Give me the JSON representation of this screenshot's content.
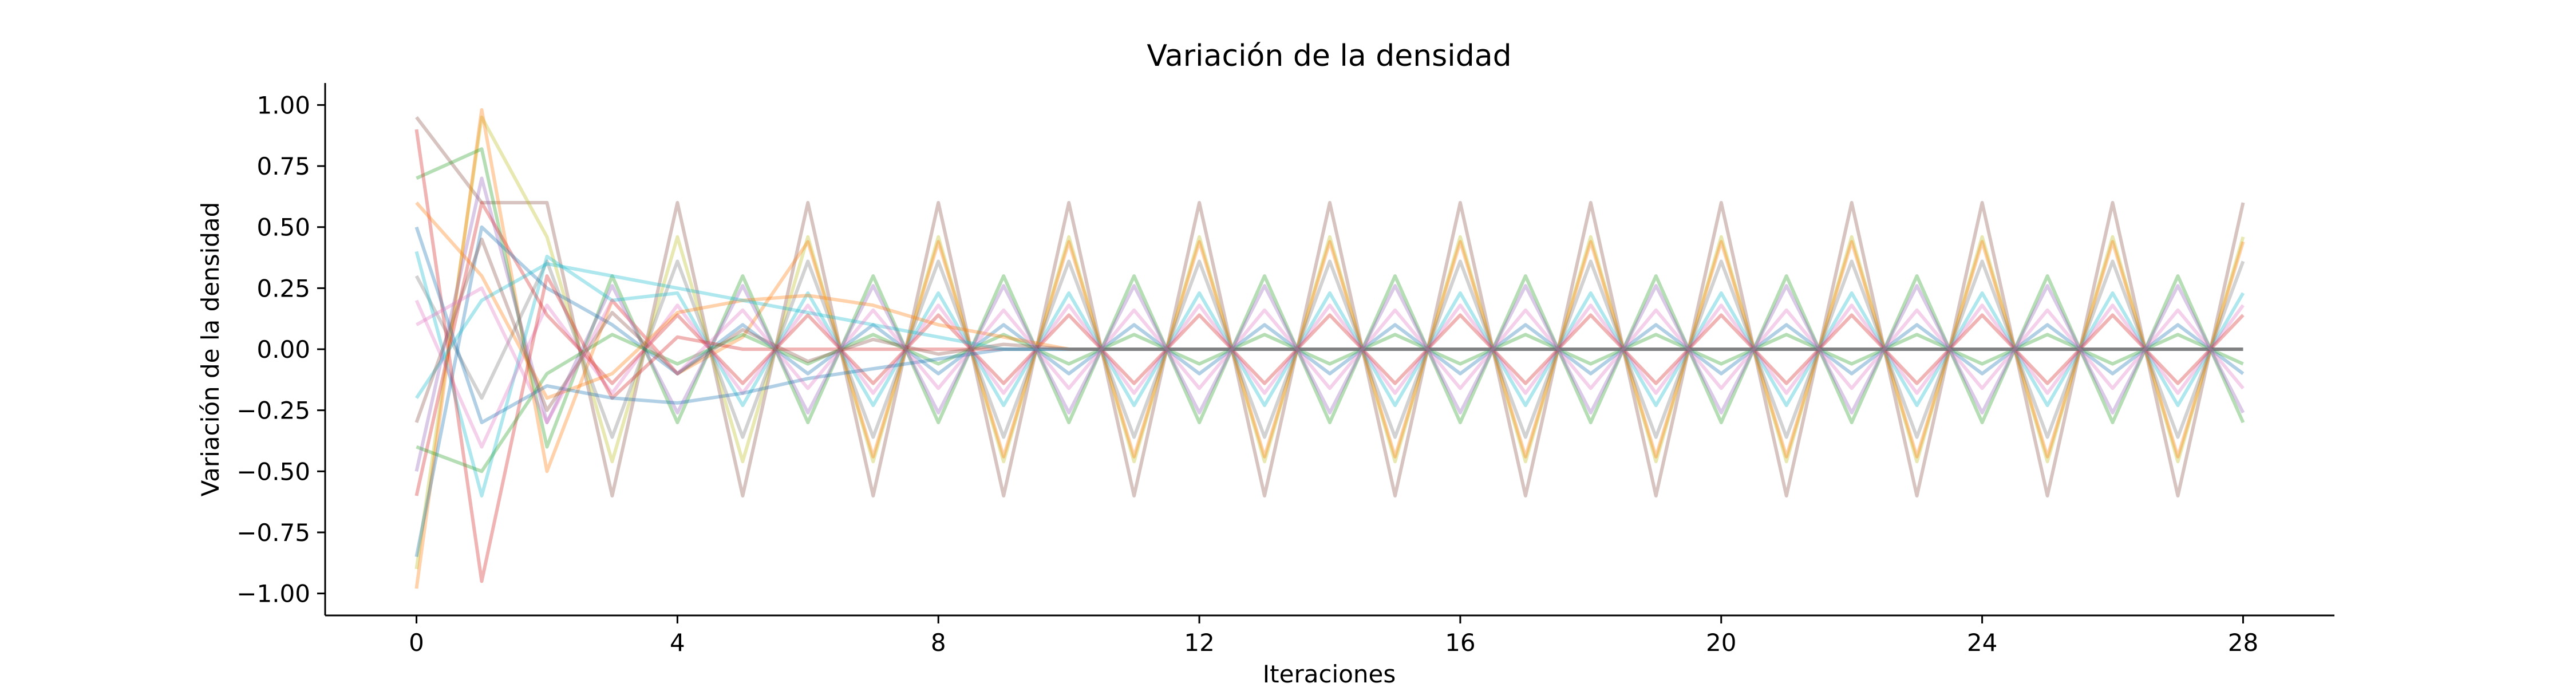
{
  "chart_data": {
    "type": "line",
    "title": "Variación de la densidad",
    "xlabel": "Iteraciones",
    "ylabel": "Variación de la densidad",
    "xlim": [
      -1.4,
      29.4
    ],
    "ylim": [
      -1.09,
      1.09
    ],
    "xticks": [
      0,
      4,
      8,
      12,
      16,
      20,
      24,
      28
    ],
    "xtick_labels": [
      "0",
      "4",
      "8",
      "12",
      "16",
      "20",
      "24",
      "28"
    ],
    "yticks": [
      1.0,
      0.75,
      0.5,
      0.25,
      0.0,
      -0.25,
      -0.5,
      -0.75,
      -1.0
    ],
    "ytick_labels": [
      "1.00",
      "0.75",
      "0.50",
      "0.25",
      "0.00",
      "−0.25",
      "−0.50",
      "−0.75",
      "−1.00"
    ],
    "grid": false,
    "legend": "none",
    "line_opacity": 0.35,
    "note_series": "Representative subset of the many overlapping translucent series; values estimated from the plot.",
    "series": [
      {
        "color": "#8c564b",
        "values": [
          0.95,
          0.6,
          0,
          0,
          0,
          0,
          0,
          0,
          0,
          0,
          0,
          0,
          0,
          0,
          0,
          0,
          0,
          0,
          0,
          0,
          0,
          0,
          0,
          0,
          0,
          0,
          0,
          0,
          0
        ],
        "osc_amp": 0.6,
        "osc_start": 2
      },
      {
        "color": "#bcbd22",
        "values": [
          -0.9,
          0.95,
          0,
          0,
          0,
          0,
          0,
          0,
          0,
          0,
          0,
          0,
          0,
          0,
          0,
          0,
          0,
          0,
          0,
          0,
          0,
          0,
          0,
          0,
          0,
          0,
          0,
          0,
          0
        ],
        "osc_amp": 0.46,
        "osc_start": 2
      },
      {
        "color": "#ff7f0e",
        "values": [
          -0.98,
          0.98,
          -0.5,
          0.2,
          -0.1,
          0.05,
          0,
          0,
          0,
          0,
          0,
          0,
          0,
          0,
          0,
          0,
          0,
          0,
          0,
          0,
          0,
          0,
          0,
          0,
          0,
          0,
          0,
          0,
          0
        ],
        "osc_amp": 0.44,
        "osc_start": 6
      },
      {
        "color": "#7f7f7f",
        "values": [
          0.3,
          -0.2,
          0,
          0,
          0,
          0,
          0,
          0,
          0,
          0,
          0,
          0,
          0,
          0,
          0,
          0,
          0,
          0,
          0,
          0,
          0,
          0,
          0,
          0,
          0,
          0,
          0,
          0,
          0
        ],
        "osc_amp": 0.36,
        "osc_start": 2
      },
      {
        "color": "#2ca02c",
        "values": [
          0.7,
          0.82,
          -0.4,
          0.1,
          0,
          0,
          0,
          0,
          0,
          0,
          0,
          0,
          0,
          0,
          0,
          0,
          0,
          0,
          0,
          0,
          0,
          0,
          0,
          0,
          0,
          0,
          0,
          0,
          0
        ],
        "osc_amp": 0.3,
        "osc_start": 3
      },
      {
        "color": "#9467bd",
        "values": [
          -0.5,
          0.7,
          -0.3,
          0.1,
          0,
          0,
          0,
          0,
          0,
          0,
          0,
          0,
          0,
          0,
          0,
          0,
          0,
          0,
          0,
          0,
          0,
          0,
          0,
          0,
          0,
          0,
          0,
          0,
          0
        ],
        "osc_amp": 0.26,
        "osc_start": 3
      },
      {
        "color": "#17becf",
        "values": [
          0.4,
          -0.6,
          0.38,
          0.2,
          0.1,
          0.05,
          0,
          0,
          0,
          0,
          0,
          0,
          0,
          0,
          0,
          0,
          0,
          0,
          0,
          0,
          0,
          0,
          0,
          0,
          0,
          0,
          0,
          0,
          0
        ],
        "osc_amp": 0.23,
        "osc_start": 4
      },
      {
        "color": "#e377c2",
        "values": [
          0.2,
          -0.4,
          0.1,
          0,
          0,
          0,
          0,
          0,
          0,
          0,
          0,
          0,
          0,
          0,
          0,
          0,
          0,
          0,
          0,
          0,
          0,
          0,
          0,
          0,
          0,
          0,
          0,
          0,
          0
        ],
        "osc_amp": 0.18,
        "osc_start": 2
      },
      {
        "color": "#d62728",
        "values": [
          -0.6,
          0.6,
          0.1,
          0,
          0,
          0,
          0,
          0,
          0,
          0,
          0,
          0,
          0,
          0,
          0,
          0,
          0,
          0,
          0,
          0,
          0,
          0,
          0,
          0,
          0,
          0,
          0,
          0,
          0
        ],
        "osc_amp": 0.14,
        "osc_start": 2
      },
      {
        "color": "#1f77b4",
        "values": [
          -0.85,
          0.5,
          0.25,
          0.15,
          0.1,
          0.05,
          0,
          0,
          0,
          0,
          0,
          0,
          0,
          0,
          0,
          0,
          0,
          0,
          0,
          0,
          0,
          0,
          0,
          0,
          0,
          0,
          0,
          0,
          0
        ],
        "osc_amp": 0.1,
        "osc_start": 3
      },
      {
        "color": "#d62728",
        "values": [
          0.9,
          -0.95,
          0.3,
          -0.2,
          0.05,
          0,
          0,
          0,
          0,
          0,
          0,
          0,
          0,
          0,
          0,
          0,
          0,
          0,
          0,
          0,
          0,
          0,
          0,
          0,
          0,
          0,
          0,
          0,
          0
        ],
        "osc_amp": 0.0,
        "osc_start": 28
      },
      {
        "color": "#2ca02c",
        "values": [
          -0.4,
          -0.5,
          -0.1,
          -0.05,
          0,
          0,
          0,
          0,
          0,
          0,
          0,
          0,
          0,
          0,
          0,
          0,
          0,
          0,
          0,
          0,
          0,
          0,
          0,
          0,
          0,
          0,
          0,
          0,
          0
        ],
        "osc_amp": 0.06,
        "osc_start": 3
      },
      {
        "color": "#ff7f0e",
        "values": [
          0.6,
          0.3,
          -0.2,
          -0.1,
          0.15,
          0.2,
          0.22,
          0.18,
          0.1,
          0.05,
          0,
          0,
          0,
          0,
          0,
          0,
          0,
          0,
          0,
          0,
          0,
          0,
          0,
          0,
          0,
          0,
          0,
          0,
          0
        ],
        "osc_amp": 0.0,
        "osc_start": 28
      },
      {
        "color": "#17becf",
        "values": [
          -0.2,
          0.2,
          0.35,
          0.3,
          0.25,
          0.2,
          0.15,
          0.1,
          0.05,
          0,
          0,
          0,
          0,
          0,
          0,
          0,
          0,
          0,
          0,
          0,
          0,
          0,
          0,
          0,
          0,
          0,
          0,
          0,
          0
        ],
        "osc_amp": 0.0,
        "osc_start": 28
      },
      {
        "color": "#1f77b4",
        "values": [
          0.5,
          -0.3,
          -0.15,
          -0.2,
          -0.22,
          -0.18,
          -0.12,
          -0.08,
          -0.04,
          0,
          0,
          0,
          0,
          0,
          0,
          0,
          0,
          0,
          0,
          0,
          0,
          0,
          0,
          0,
          0,
          0,
          0,
          0,
          0
        ],
        "osc_amp": 0.0,
        "osc_start": 28
      },
      {
        "color": "#8c564b",
        "values": [
          -0.3,
          0.45,
          -0.25,
          0.15,
          -0.1,
          0.08,
          -0.05,
          0.04,
          -0.02,
          0.02,
          0,
          0,
          0,
          0,
          0,
          0,
          0,
          0,
          0,
          0,
          0,
          0,
          0,
          0,
          0,
          0,
          0,
          0,
          0
        ],
        "osc_amp": 0.0,
        "osc_start": 28
      },
      {
        "color": "#e377c2",
        "values": [
          0.1,
          0.25,
          -0.3,
          0.2,
          -0.1,
          0,
          0,
          0,
          0,
          0,
          0,
          0,
          0,
          0,
          0,
          0,
          0,
          0,
          0,
          0,
          0,
          0,
          0,
          0,
          0,
          0,
          0,
          0,
          0
        ],
        "osc_amp": 0.16,
        "osc_start": 5
      }
    ]
  }
}
